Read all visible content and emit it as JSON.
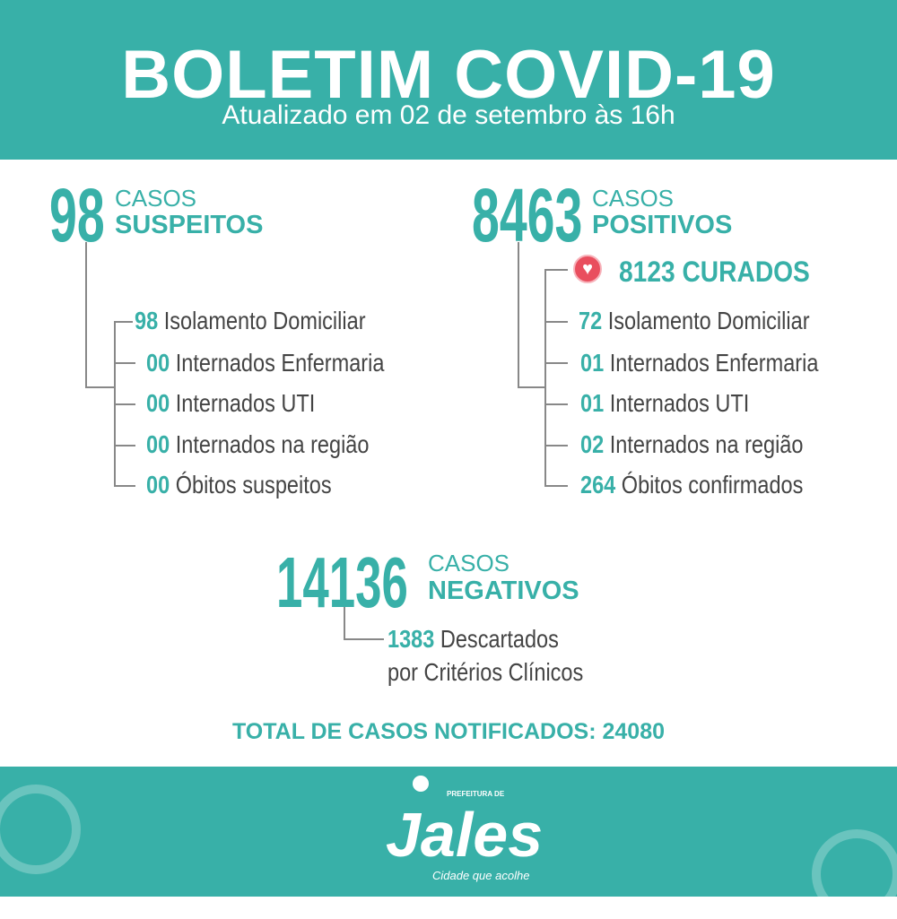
{
  "header": {
    "title": "BOLETIM COVID-19",
    "subtitle": "Atualizado em 02 de setembro às 16h"
  },
  "colors": {
    "accent": "#38b0a8",
    "text": "#444444",
    "heart": "#e94e5e"
  },
  "suspeitos": {
    "count": "98",
    "casos": "CASOS",
    "kind": "SUSPEITOS",
    "items": [
      {
        "n": "98",
        "label": "Isolamento Domiciliar"
      },
      {
        "n": "00",
        "label": "Internados Enfermaria"
      },
      {
        "n": "00",
        "label": "Internados UTI"
      },
      {
        "n": "00",
        "label": "Internados na região"
      },
      {
        "n": "00",
        "label": "Óbitos suspeitos"
      }
    ]
  },
  "positivos": {
    "count": "8463",
    "casos": "CASOS",
    "kind": "POSITIVOS",
    "curados": "8123 CURADOS",
    "curados_icon": "heart-icon",
    "items": [
      {
        "n": "72",
        "label": "Isolamento Domiciliar"
      },
      {
        "n": "01",
        "label": "Internados Enfermaria"
      },
      {
        "n": "01",
        "label": "Internados UTI"
      },
      {
        "n": "02",
        "label": "Internados na região"
      },
      {
        "n": "264",
        "label": "Óbitos confirmados"
      }
    ]
  },
  "negativos": {
    "count": "14136",
    "casos": "CASOS",
    "kind": "NEGATIVOS",
    "descartados_n": "1383",
    "descartados_label": "Descartados",
    "descartados_label2": "por Critérios Clínicos"
  },
  "total": "TOTAL DE CASOS NOTIFICADOS: 24080",
  "footer": {
    "logo_top": "PREFEITURA DE",
    "logo_name": "Jales",
    "logo_tagline": "Cidade que acolhe"
  }
}
